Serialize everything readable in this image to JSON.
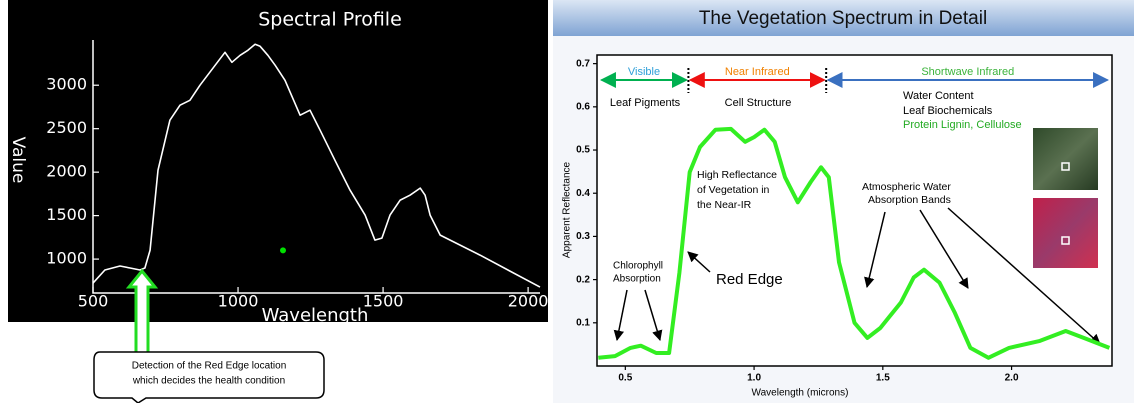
{
  "chart_data": [
    {
      "type": "line",
      "title": "Spectral Profile",
      "xlabel": "Wavelength",
      "ylabel": "Value",
      "x": [
        500,
        541,
        593,
        628,
        662,
        679,
        697,
        724,
        765,
        800,
        834,
        869,
        921,
        955,
        979,
        1007,
        1034,
        1059,
        1076,
        1103,
        1128,
        1162,
        1214,
        1248,
        1283,
        1334,
        1386,
        1438,
        1472,
        1496,
        1524,
        1559,
        1593,
        1628,
        1645,
        1662,
        1697,
        1834,
        2041
      ],
      "values": [
        724,
        874,
        920,
        897,
        874,
        897,
        1103,
        2022,
        2597,
        2770,
        2827,
        3000,
        3229,
        3378,
        3264,
        3344,
        3401,
        3470,
        3447,
        3344,
        3229,
        3057,
        2655,
        2713,
        2483,
        2138,
        1793,
        1506,
        1218,
        1241,
        1506,
        1678,
        1735,
        1816,
        1735,
        1506,
        1276,
        1046,
        678
      ],
      "color": "#ffffff",
      "points": {
        "x": [
          1155
        ],
        "y": [
          1100
        ],
        "color": "#00e000"
      },
      "xlim": [
        500,
        2041
      ],
      "ylim": [
        610,
        3520
      ],
      "xticks": [
        500,
        1000,
        1500,
        2000
      ],
      "yticks": [
        1000,
        1500,
        2000,
        2500,
        3000
      ]
    },
    {
      "type": "line",
      "title": "The Vegetation Spectrum in Detail",
      "xlabel": "Wavelength (microns)",
      "ylabel": "Apparent Reflectance",
      "x": [
        0.395,
        0.46,
        0.52,
        0.56,
        0.62,
        0.67,
        0.71,
        0.75,
        0.79,
        0.85,
        0.91,
        0.965,
        1.0,
        1.04,
        1.08,
        1.12,
        1.17,
        1.22,
        1.26,
        1.29,
        1.33,
        1.39,
        1.44,
        1.49,
        1.57,
        1.62,
        1.66,
        1.72,
        1.78,
        1.84,
        1.91,
        1.99,
        2.11,
        2.21,
        2.28,
        2.38
      ],
      "values": [
        0.019,
        0.023,
        0.042,
        0.047,
        0.03,
        0.03,
        0.216,
        0.449,
        0.507,
        0.547,
        0.549,
        0.519,
        0.53,
        0.547,
        0.519,
        0.437,
        0.379,
        0.426,
        0.46,
        0.437,
        0.24,
        0.1,
        0.065,
        0.088,
        0.147,
        0.205,
        0.223,
        0.193,
        0.123,
        0.042,
        0.019,
        0.042,
        0.058,
        0.081,
        0.065,
        0.042
      ],
      "color": "#33ee22",
      "xlim": [
        0.39,
        2.39
      ],
      "ylim": [
        0,
        0.72
      ],
      "xticks": [
        0.5,
        {
          "value": 1,
          "label": "1.0"
        },
        1.5,
        {
          "value": 2,
          "label": "2.0"
        }
      ],
      "yticks": [
        0.1,
        0.2,
        0.3,
        0.4,
        0.5,
        0.6,
        0.7
      ],
      "bands": [
        {
          "name": "Visible",
          "from": 0.4,
          "to": 0.745,
          "color": "#00b050",
          "label_color": "#2e9fd8"
        },
        {
          "name": "Near Infrared",
          "from": 0.745,
          "to": 1.28,
          "color": "#ee1111",
          "label_color": "#f08000"
        },
        {
          "name": "Shortwave Infrared",
          "from": 1.28,
          "to": 2.38,
          "color": "#3a70c0",
          "label_color": "#3bb33b"
        }
      ],
      "region_labels": [
        {
          "text": "Leaf Pigments",
          "color": "#000000"
        },
        {
          "text": "Cell Structure",
          "color": "#000000"
        },
        {
          "text": "Water Content",
          "color": "#000000"
        },
        {
          "text": "Leaf Biochemicals",
          "color": "#000000"
        },
        {
          "text": "Protein Lignin, Cellulose",
          "color": "#22aa22"
        }
      ],
      "annotations": [
        {
          "lines": [
            "High Reflectance",
            "of Vegetation in",
            "the Near-IR"
          ]
        },
        {
          "lines": [
            "Chlorophyll",
            "Absorption"
          ]
        },
        {
          "lines": [
            "Red Edge"
          ]
        },
        {
          "lines": [
            "Atmospheric Water",
            "Absorption Bands"
          ]
        }
      ]
    }
  ],
  "callout": {
    "lines": [
      "Detection of the Red Edge location",
      "which decides the health condition"
    ]
  }
}
